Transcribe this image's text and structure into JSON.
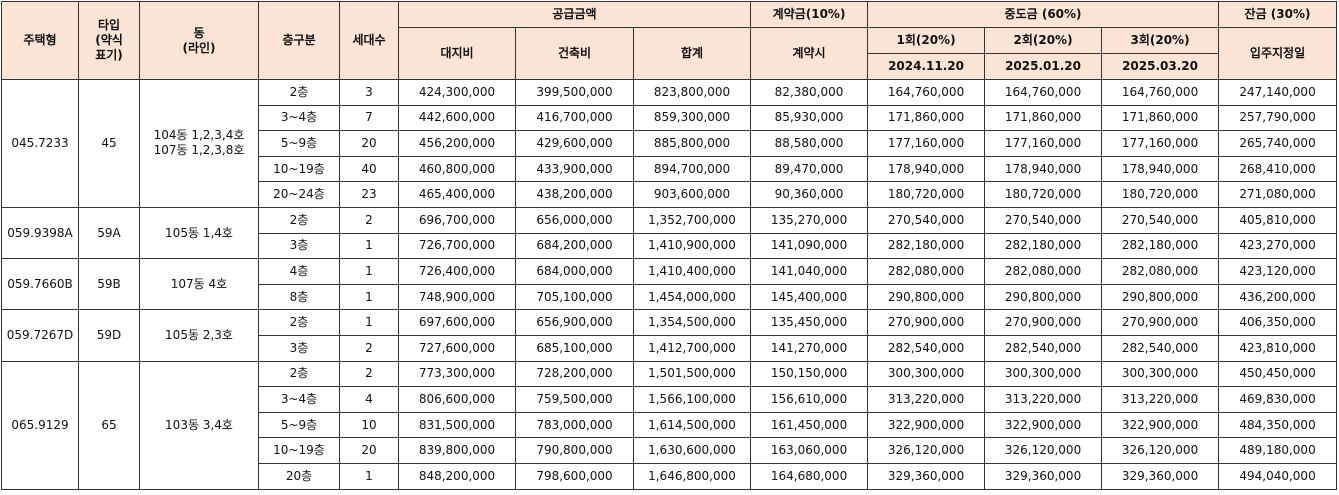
{
  "header": {
    "type": "주택형",
    "type_short": "타입\n(약식\n표기)",
    "dong": "동\n(라인)",
    "floor": "층구분",
    "units": "세대수",
    "supply": "공급금액",
    "contract": "계약금(10%)",
    "middle": "중도금  (60%)",
    "balance": "잔금  (30%)",
    "land": "대지비",
    "building": "건축비",
    "total": "합계",
    "contract_when": "계약시",
    "m1": "1회(20%)",
    "m2": "2회(20%)",
    "m3": "3회(20%)",
    "move_in": "입주지정일",
    "m1_date": "2024.11.20",
    "m2_date": "2025.01.20",
    "m3_date": "2025.03.20"
  },
  "groups": [
    {
      "type": "045.7233",
      "type_short": "45",
      "dong": "104동  1,2,3,4호\n107동  1,2,3,8호",
      "rows": [
        [
          "2층",
          "3",
          "424,300,000",
          "399,500,000",
          "823,800,000",
          "82,380,000",
          "164,760,000",
          "164,760,000",
          "164,760,000",
          "247,140,000"
        ],
        [
          "3~4층",
          "7",
          "442,600,000",
          "416,700,000",
          "859,300,000",
          "85,930,000",
          "171,860,000",
          "171,860,000",
          "171,860,000",
          "257,790,000"
        ],
        [
          "5~9층",
          "20",
          "456,200,000",
          "429,600,000",
          "885,800,000",
          "88,580,000",
          "177,160,000",
          "177,160,000",
          "177,160,000",
          "265,740,000"
        ],
        [
          "10~19층",
          "40",
          "460,800,000",
          "433,900,000",
          "894,700,000",
          "89,470,000",
          "178,940,000",
          "178,940,000",
          "178,940,000",
          "268,410,000"
        ],
        [
          "20~24층",
          "23",
          "465,400,000",
          "438,200,000",
          "903,600,000",
          "90,360,000",
          "180,720,000",
          "180,720,000",
          "180,720,000",
          "271,080,000"
        ]
      ]
    },
    {
      "type": "059.9398A",
      "type_short": "59A",
      "dong": "105동  1,4호",
      "rows": [
        [
          "2층",
          "2",
          "696,700,000",
          "656,000,000",
          "1,352,700,000",
          "135,270,000",
          "270,540,000",
          "270,540,000",
          "270,540,000",
          "405,810,000"
        ],
        [
          "3층",
          "1",
          "726,700,000",
          "684,200,000",
          "1,410,900,000",
          "141,090,000",
          "282,180,000",
          "282,180,000",
          "282,180,000",
          "423,270,000"
        ]
      ]
    },
    {
      "type": "059.7660B",
      "type_short": "59B",
      "dong": "107동  4호",
      "rows": [
        [
          "4층",
          "1",
          "726,400,000",
          "684,000,000",
          "1,410,400,000",
          "141,040,000",
          "282,080,000",
          "282,080,000",
          "282,080,000",
          "423,120,000"
        ],
        [
          "8층",
          "1",
          "748,900,000",
          "705,100,000",
          "1,454,000,000",
          "145,400,000",
          "290,800,000",
          "290,800,000",
          "290,800,000",
          "436,200,000"
        ]
      ]
    },
    {
      "type": "059.7267D",
      "type_short": "59D",
      "dong": "105동  2,3호",
      "rows": [
        [
          "2층",
          "1",
          "697,600,000",
          "656,900,000",
          "1,354,500,000",
          "135,450,000",
          "270,900,000",
          "270,900,000",
          "270,900,000",
          "406,350,000"
        ],
        [
          "3층",
          "2",
          "727,600,000",
          "685,100,000",
          "1,412,700,000",
          "141,270,000",
          "282,540,000",
          "282,540,000",
          "282,540,000",
          "423,810,000"
        ]
      ]
    },
    {
      "type": "065.9129",
      "type_short": "65",
      "dong": "103동  3,4호",
      "rows": [
        [
          "2층",
          "2",
          "773,300,000",
          "728,200,000",
          "1,501,500,000",
          "150,150,000",
          "300,300,000",
          "300,300,000",
          "300,300,000",
          "450,450,000"
        ],
        [
          "3~4층",
          "4",
          "806,600,000",
          "759,500,000",
          "1,566,100,000",
          "156,610,000",
          "313,220,000",
          "313,220,000",
          "313,220,000",
          "469,830,000"
        ],
        [
          "5~9층",
          "10",
          "831,500,000",
          "783,000,000",
          "1,614,500,000",
          "161,450,000",
          "322,900,000",
          "322,900,000",
          "322,900,000",
          "484,350,000"
        ],
        [
          "10~19층",
          "20",
          "839,800,000",
          "790,800,000",
          "1,630,600,000",
          "163,060,000",
          "326,120,000",
          "326,120,000",
          "326,120,000",
          "489,180,000"
        ],
        [
          "20층",
          "1",
          "848,200,000",
          "798,600,000",
          "1,646,800,000",
          "164,680,000",
          "329,360,000",
          "329,360,000",
          "329,360,000",
          "494,040,000"
        ]
      ]
    }
  ]
}
